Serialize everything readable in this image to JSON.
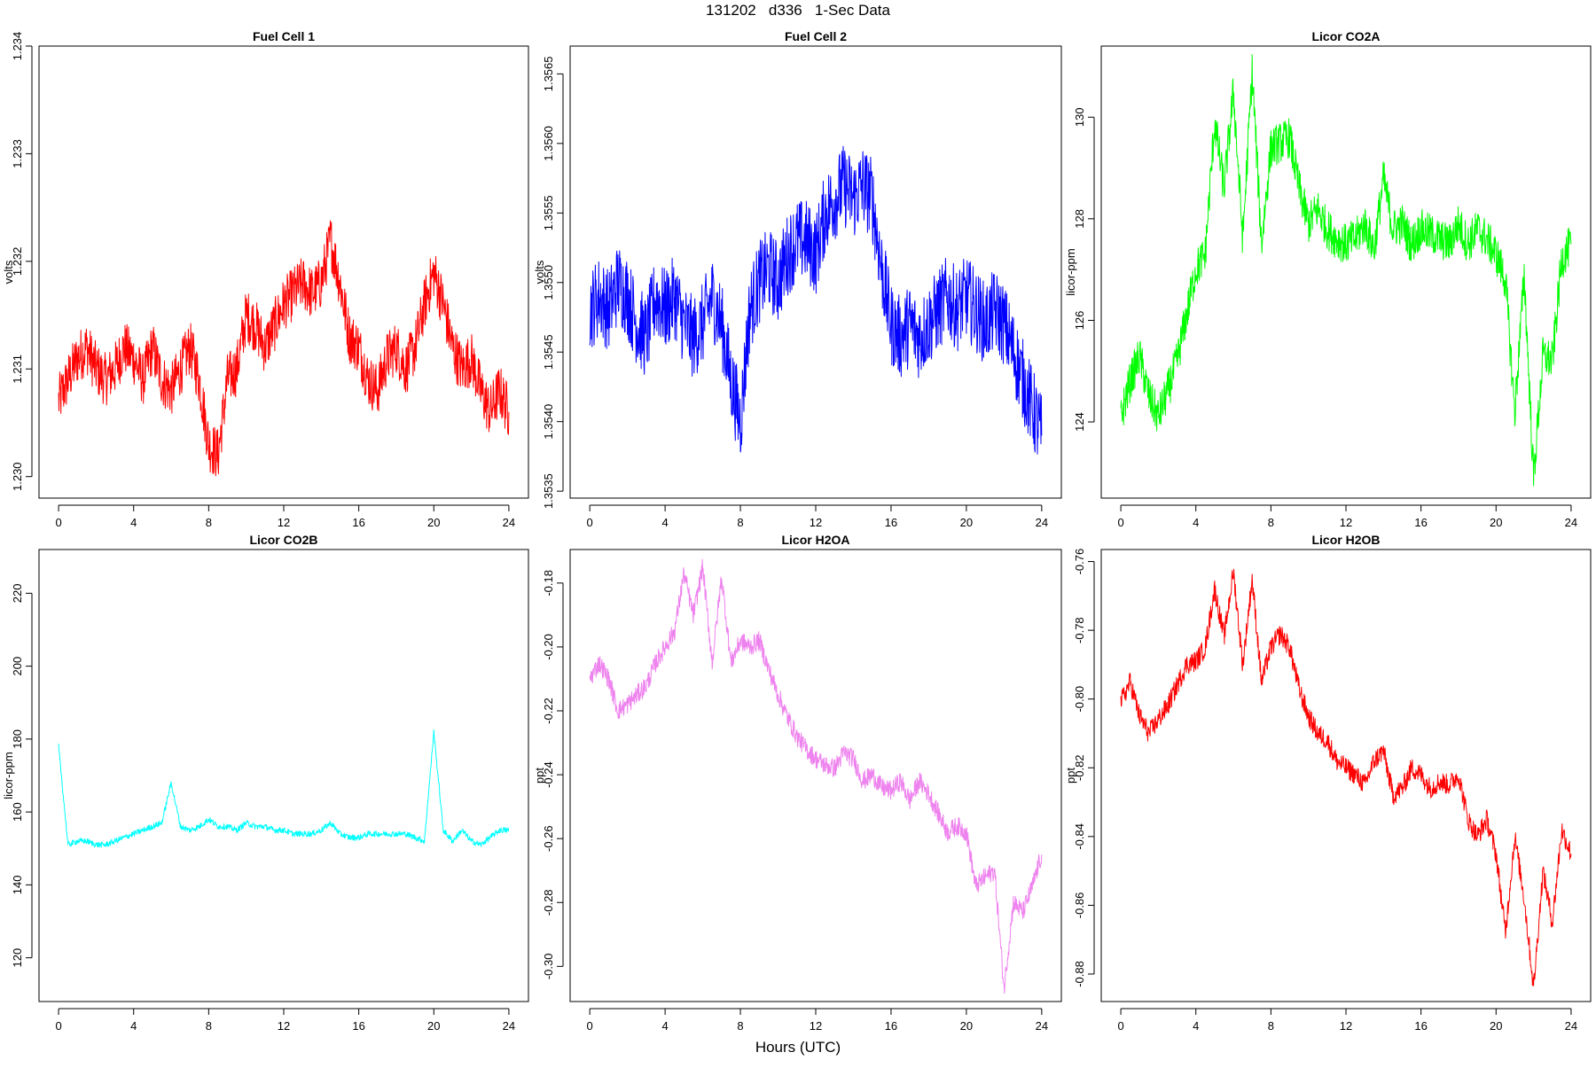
{
  "figure": {
    "title": "131202   d336   1-Sec Data",
    "xlabel": "Hours (UTC)"
  },
  "chart_data": [
    {
      "type": "line",
      "title": "Fuel Cell 1",
      "xlabel": "",
      "ylabel": "volts",
      "color": "#ff0000",
      "xlim": [
        0,
        24
      ],
      "ylim": [
        1.2298,
        1.234
      ],
      "xticks": [
        0,
        4,
        8,
        12,
        16,
        20,
        24
      ],
      "yticks": [
        1.23,
        1.231,
        1.232,
        1.233,
        1.234
      ],
      "ytick_labels": [
        "1.230",
        "1.231",
        "1.232",
        "1.233",
        "1.234"
      ],
      "x": [
        0,
        0.5,
        1,
        1.5,
        2,
        2.5,
        3,
        3.5,
        4,
        4.5,
        5,
        5.5,
        6,
        6.5,
        7,
        7.5,
        8,
        8.5,
        9,
        9.5,
        10,
        10.5,
        11,
        11.5,
        12,
        12.5,
        13,
        13.5,
        14,
        14.5,
        15,
        15.5,
        16,
        16.5,
        17,
        17.5,
        18,
        18.5,
        19,
        19.5,
        20,
        20.5,
        21,
        21.5,
        22,
        22.5,
        23,
        23.5,
        24
      ],
      "y": [
        1.2307,
        1.2309,
        1.2311,
        1.2312,
        1.231,
        1.2309,
        1.231,
        1.2312,
        1.2311,
        1.2309,
        1.2312,
        1.2309,
        1.2308,
        1.231,
        1.2312,
        1.2309,
        1.2303,
        1.2302,
        1.2309,
        1.231,
        1.2315,
        1.2314,
        1.2312,
        1.2314,
        1.2316,
        1.2317,
        1.2318,
        1.2317,
        1.2318,
        1.2322,
        1.2318,
        1.2313,
        1.2312,
        1.2309,
        1.2308,
        1.2311,
        1.2312,
        1.231,
        1.2312,
        1.2316,
        1.2319,
        1.2316,
        1.2312,
        1.231,
        1.2311,
        1.2308,
        1.2306,
        1.2308,
        1.2306
      ],
      "noise": 0.00025
    },
    {
      "type": "line",
      "title": "Fuel Cell 2",
      "xlabel": "",
      "ylabel": "volts",
      "color": "#0000ff",
      "xlim": [
        0,
        24
      ],
      "ylim": [
        1.35345,
        1.3567
      ],
      "xticks": [
        0,
        4,
        8,
        12,
        16,
        20,
        24
      ],
      "yticks": [
        1.3535,
        1.354,
        1.3545,
        1.355,
        1.3555,
        1.356,
        1.3565
      ],
      "ytick_labels": [
        "1.3535",
        "1.3540",
        "1.3545",
        "1.3550",
        "1.3555",
        "1.3560",
        "1.3565"
      ],
      "x": [
        0,
        0.5,
        1,
        1.5,
        2,
        2.5,
        3,
        3.5,
        4,
        4.5,
        5,
        5.5,
        6,
        6.5,
        7,
        7.5,
        8,
        8.5,
        9,
        9.5,
        10,
        10.5,
        11,
        11.5,
        12,
        12.5,
        13,
        13.5,
        14,
        14.5,
        15,
        15.5,
        16,
        16.5,
        17,
        17.5,
        18,
        18.5,
        19,
        19.5,
        20,
        20.5,
        21,
        21.5,
        22,
        22.5,
        23,
        23.5,
        24
      ],
      "y": [
        1.3548,
        1.3549,
        1.3548,
        1.355,
        1.3549,
        1.3547,
        1.3546,
        1.3549,
        1.3548,
        1.3549,
        1.3547,
        1.3546,
        1.3547,
        1.3549,
        1.3547,
        1.3543,
        1.354,
        1.3548,
        1.355,
        1.3551,
        1.355,
        1.3552,
        1.3553,
        1.3553,
        1.3552,
        1.3555,
        1.3556,
        1.3557,
        1.3556,
        1.3557,
        1.3556,
        1.3551,
        1.3547,
        1.3546,
        1.3547,
        1.3546,
        1.3547,
        1.3548,
        1.3549,
        1.3548,
        1.3549,
        1.3548,
        1.3547,
        1.3548,
        1.3547,
        1.3545,
        1.3543,
        1.3541,
        1.3539
      ],
      "noise": 0.0003
    },
    {
      "type": "line",
      "title": "Licor CO2A",
      "xlabel": "",
      "ylabel": "licor-ppm",
      "color": "#00ff00",
      "xlim": [
        0,
        24
      ],
      "ylim": [
        122.5,
        131.4
      ],
      "xticks": [
        0,
        4,
        8,
        12,
        16,
        20,
        24
      ],
      "yticks": [
        124,
        126,
        128,
        130
      ],
      "ytick_labels": [
        "124",
        "126",
        "128",
        "130"
      ],
      "x": [
        0,
        0.5,
        1,
        1.5,
        2,
        2.5,
        3,
        3.5,
        4,
        4.5,
        5,
        5.5,
        6,
        6.5,
        7,
        7.5,
        8,
        8.5,
        9,
        9.5,
        10,
        10.5,
        11,
        11.5,
        12,
        12.5,
        13,
        13.5,
        14,
        14.5,
        15,
        15.5,
        16,
        16.5,
        17,
        17.5,
        18,
        18.5,
        19,
        19.5,
        20,
        20.5,
        21,
        21.5,
        22,
        22.5,
        23,
        23.5,
        24
      ],
      "y": [
        124.1,
        124.8,
        125.3,
        124.5,
        124.1,
        124.6,
        125.2,
        126.1,
        127.0,
        127.3,
        129.9,
        128.6,
        130.5,
        127.6,
        130.9,
        127.5,
        129.4,
        129.5,
        129.6,
        128.6,
        127.9,
        128.2,
        127.8,
        127.6,
        127.5,
        127.6,
        127.9,
        127.4,
        128.8,
        127.8,
        127.9,
        127.5,
        127.8,
        127.7,
        127.6,
        127.5,
        127.9,
        127.5,
        127.8,
        127.6,
        127.3,
        126.8,
        124.2,
        126.9,
        122.9,
        125.3,
        125.2,
        127.2,
        127.5
      ],
      "noise": 0.4
    },
    {
      "type": "line",
      "title": "Licor CO2B",
      "xlabel": "",
      "ylabel": "licor-ppm",
      "color": "#00ffff",
      "xlim": [
        0,
        24
      ],
      "ylim": [
        108,
        232
      ],
      "xticks": [
        0,
        4,
        8,
        12,
        16,
        20,
        24
      ],
      "yticks": [
        120,
        140,
        160,
        180,
        200,
        220
      ],
      "ytick_labels": [
        "120",
        "140",
        "160",
        "180",
        "200",
        "220"
      ],
      "x": [
        0,
        0.5,
        1,
        1.5,
        2,
        2.5,
        3,
        3.5,
        4,
        4.5,
        5,
        5.5,
        6,
        6.5,
        7,
        7.5,
        8,
        8.5,
        9,
        9.5,
        10,
        10.5,
        11,
        11.5,
        12,
        12.5,
        13,
        13.5,
        14,
        14.5,
        15,
        15.5,
        16,
        16.5,
        17,
        17.5,
        18,
        18.5,
        19,
        19.5,
        20,
        20.5,
        21,
        21.5,
        22,
        22.5,
        23,
        23.5,
        24
      ],
      "y": [
        178,
        151,
        152,
        152,
        151,
        151,
        152,
        153,
        154,
        155,
        156,
        157,
        168,
        156,
        155,
        156,
        158,
        156,
        156,
        155,
        157,
        156,
        156,
        155,
        155,
        154,
        154,
        154,
        155,
        157,
        154,
        153,
        153,
        154,
        154,
        154,
        154,
        154,
        153,
        152,
        182,
        155,
        152,
        155,
        152,
        151,
        153,
        155,
        155
      ],
      "noise": 0.8
    },
    {
      "type": "line",
      "title": "Licor H2OA",
      "xlabel": "",
      "ylabel": "ppt",
      "color": "#ee82ee",
      "xlim": [
        0,
        24
      ],
      "ylim": [
        -0.311,
        -0.1695
      ],
      "xticks": [
        0,
        4,
        8,
        12,
        16,
        20,
        24
      ],
      "yticks": [
        -0.18,
        -0.2,
        -0.22,
        -0.24,
        -0.26,
        -0.28,
        -0.3
      ],
      "ytick_labels": [
        "-0.18",
        "-0.20",
        "-0.22",
        "-0.24",
        "-0.26",
        "-0.28",
        "-0.30"
      ],
      "x": [
        0,
        0.5,
        1,
        1.5,
        2,
        2.5,
        3,
        3.5,
        4,
        4.5,
        5,
        5.5,
        6,
        6.5,
        7,
        7.5,
        8,
        8.5,
        9,
        9.5,
        10,
        10.5,
        11,
        11.5,
        12,
        12.5,
        13,
        13.5,
        14,
        14.5,
        15,
        15.5,
        16,
        16.5,
        17,
        17.5,
        18,
        18.5,
        19,
        19.5,
        20,
        20.5,
        21,
        21.5,
        22,
        22.5,
        23,
        23.5,
        24
      ],
      "y": [
        -0.21,
        -0.205,
        -0.21,
        -0.22,
        -0.218,
        -0.215,
        -0.212,
        -0.205,
        -0.2,
        -0.195,
        -0.177,
        -0.19,
        -0.175,
        -0.205,
        -0.178,
        -0.205,
        -0.198,
        -0.2,
        -0.198,
        -0.207,
        -0.215,
        -0.222,
        -0.228,
        -0.232,
        -0.235,
        -0.237,
        -0.238,
        -0.233,
        -0.235,
        -0.242,
        -0.24,
        -0.244,
        -0.245,
        -0.242,
        -0.248,
        -0.242,
        -0.246,
        -0.252,
        -0.258,
        -0.256,
        -0.258,
        -0.275,
        -0.272,
        -0.27,
        -0.307,
        -0.28,
        -0.283,
        -0.275,
        -0.265
      ],
      "noise": 0.003
    },
    {
      "type": "line",
      "title": "Licor H2OB",
      "xlabel": "",
      "ylabel": "ppt",
      "color": "#ff0000",
      "xlim": [
        0,
        24
      ],
      "ylim": [
        -0.888,
        -0.7565
      ],
      "xticks": [
        0,
        4,
        8,
        12,
        16,
        20,
        24
      ],
      "yticks": [
        -0.76,
        -0.78,
        -0.8,
        -0.82,
        -0.84,
        -0.86,
        -0.88
      ],
      "ytick_labels": [
        "-0.76",
        "-0.78",
        "-0.80",
        "-0.82",
        "-0.84",
        "-0.86",
        "-0.88"
      ],
      "x": [
        0,
        0.5,
        1,
        1.5,
        2,
        2.5,
        3,
        3.5,
        4,
        4.5,
        5,
        5.5,
        6,
        6.5,
        7,
        7.5,
        8,
        8.5,
        9,
        9.5,
        10,
        10.5,
        11,
        11.5,
        12,
        12.5,
        13,
        13.5,
        14,
        14.5,
        15,
        15.5,
        16,
        16.5,
        17,
        17.5,
        18,
        18.5,
        19,
        19.5,
        20,
        20.5,
        21,
        21.5,
        22,
        22.5,
        23,
        23.5,
        24
      ],
      "y": [
        -0.801,
        -0.795,
        -0.805,
        -0.81,
        -0.806,
        -0.802,
        -0.796,
        -0.79,
        -0.789,
        -0.785,
        -0.768,
        -0.782,
        -0.763,
        -0.79,
        -0.765,
        -0.795,
        -0.785,
        -0.781,
        -0.785,
        -0.797,
        -0.805,
        -0.81,
        -0.812,
        -0.818,
        -0.82,
        -0.822,
        -0.825,
        -0.818,
        -0.815,
        -0.828,
        -0.826,
        -0.82,
        -0.822,
        -0.826,
        -0.824,
        -0.825,
        -0.822,
        -0.835,
        -0.84,
        -0.835,
        -0.845,
        -0.868,
        -0.84,
        -0.858,
        -0.884,
        -0.85,
        -0.865,
        -0.838,
        -0.845
      ],
      "noise": 0.003
    }
  ]
}
